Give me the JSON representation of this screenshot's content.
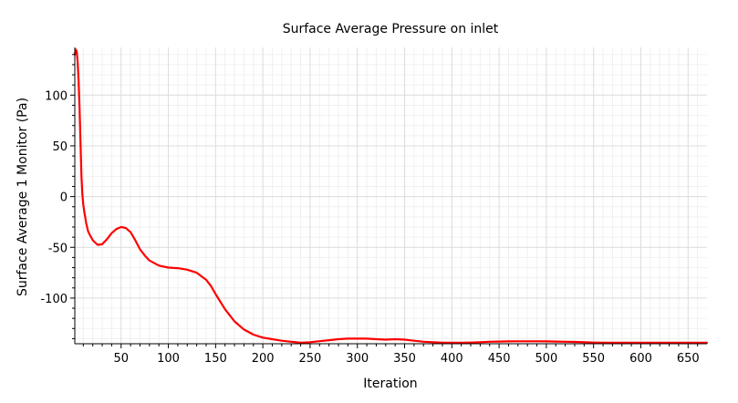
{
  "chart_data": {
    "type": "line",
    "title": "Surface Average Pressure on inlet",
    "xlabel": "Iteration",
    "ylabel": "Surface Average 1 Monitor (Pa)",
    "xlim": [
      1,
      670
    ],
    "ylim": [
      -145,
      147
    ],
    "xticks": [
      50,
      100,
      150,
      200,
      250,
      300,
      350,
      400,
      450,
      500,
      550,
      600,
      650
    ],
    "yticks": [
      100,
      50,
      0,
      -50,
      -100
    ],
    "xtick_labels": [
      "50",
      "100",
      "150",
      "200",
      "250",
      "300",
      "350",
      "400",
      "450",
      "500",
      "550",
      "600",
      "650"
    ],
    "ytick_labels": [
      "100",
      "50",
      "0",
      "-50",
      "-100"
    ],
    "grid": true,
    "series": [
      {
        "name": "Surface Average 1 Monitor",
        "color": "#ff0000",
        "x": [
          1,
          2,
          3,
          4,
          5,
          6,
          7,
          8,
          9,
          10,
          11,
          12,
          13,
          14,
          15,
          17,
          20,
          25,
          30,
          35,
          40,
          45,
          50,
          55,
          60,
          65,
          70,
          75,
          80,
          90,
          100,
          110,
          120,
          130,
          140,
          145,
          150,
          160,
          170,
          180,
          190,
          200,
          210,
          220,
          230,
          240,
          250,
          260,
          270,
          280,
          290,
          300,
          310,
          320,
          330,
          340,
          350,
          360,
          370,
          380,
          390,
          400,
          410,
          420,
          430,
          440,
          450,
          460,
          470,
          480,
          490,
          500,
          510,
          520,
          530,
          540,
          550,
          560,
          570,
          580,
          590,
          600,
          610,
          620,
          630,
          640,
          650,
          660,
          670
        ],
        "values": [
          140,
          145,
          143,
          133,
          115,
          88,
          55,
          20,
          2,
          -8,
          -15,
          -20,
          -26,
          -30,
          -34,
          -38,
          -43,
          -47.5,
          -47,
          -42,
          -36,
          -32,
          -30,
          -31,
          -35,
          -43,
          -52,
          -58,
          -63,
          -68,
          -70,
          -70.5,
          -72,
          -75,
          -82,
          -88,
          -96,
          -111,
          -123,
          -131,
          -136,
          -139,
          -140.5,
          -142,
          -143,
          -144,
          -143.5,
          -142.5,
          -141.5,
          -140.5,
          -140,
          -140,
          -140,
          -140.5,
          -141,
          -140.5,
          -141,
          -142,
          -143,
          -143.5,
          -144,
          -144,
          -144,
          -143.8,
          -143.5,
          -143,
          -142.8,
          -142.7,
          -142.6,
          -142.6,
          -142.6,
          -142.7,
          -142.8,
          -143,
          -143.2,
          -143.5,
          -143.8,
          -144,
          -144,
          -144,
          -144,
          -144,
          -144,
          -144,
          -144,
          -144,
          -144,
          -144,
          -144
        ]
      }
    ]
  }
}
